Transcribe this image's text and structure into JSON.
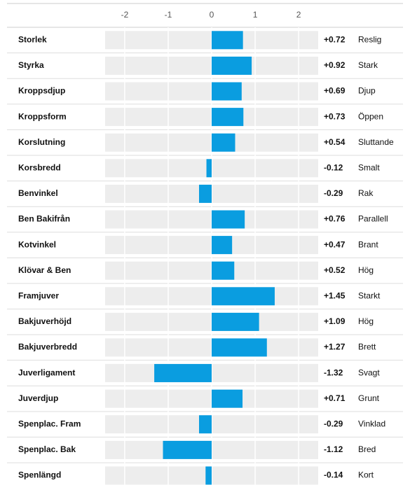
{
  "chart_data": {
    "type": "bar",
    "orientation": "horizontal",
    "categories": [
      "Storlek",
      "Styrka",
      "Kroppsdjup",
      "Kroppsform",
      "Korslutning",
      "Korsbredd",
      "Benvinkel",
      "Ben Bakifrån",
      "Kotvinkel",
      "Klövar & Ben",
      "Framjuver",
      "Bakjuverhöjd",
      "Bakjuverbredd",
      "Juverligament",
      "Juverdjup",
      "Spenplac. Fram",
      "Spenplac. Bak",
      "Spenlängd"
    ],
    "values": [
      0.72,
      0.92,
      0.69,
      0.73,
      0.54,
      -0.12,
      -0.29,
      0.76,
      0.47,
      0.52,
      1.45,
      1.09,
      1.27,
      -1.32,
      0.71,
      -0.29,
      -1.12,
      -0.14
    ],
    "value_labels": [
      "+0.72",
      "+0.92",
      "+0.69",
      "+0.73",
      "+0.54",
      "-0.12",
      "-0.29",
      "+0.76",
      "+0.47",
      "+0.52",
      "+1.45",
      "+1.09",
      "+1.27",
      "-1.32",
      "+0.71",
      "-0.29",
      "-1.12",
      "-0.14"
    ],
    "descriptors": [
      "Reslig",
      "Stark",
      "Djup",
      "Öppen",
      "Sluttande",
      "Smalt",
      "Rak",
      "Parallell",
      "Brant",
      "Hög",
      "Starkt",
      "Hög",
      "Brett",
      "Svagt",
      "Grunt",
      "Vinklad",
      "Bred",
      "Kort"
    ],
    "color": "#0a9de0",
    "xlim": [
      -2.45,
      2.45
    ],
    "xticks": [
      -2,
      -1,
      0,
      1,
      2
    ],
    "grid": true
  }
}
